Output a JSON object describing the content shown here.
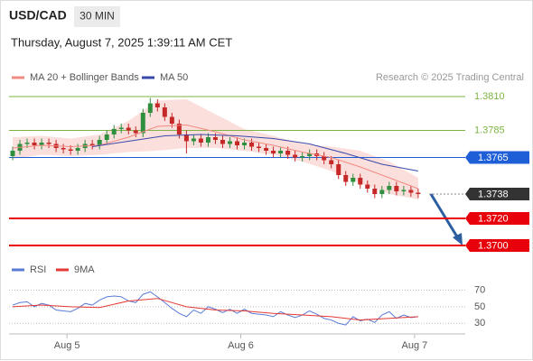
{
  "header": {
    "symbol": "USD/CAD",
    "timeframe": "30 MIN",
    "timestamp": "Thursday, August 7, 2025 1:39:11 AM CET"
  },
  "chart_data": [
    {
      "type": "candlestick",
      "source": "Research © 2025 Trading Central",
      "xlim": [
        -0.5,
        62.5
      ],
      "ylim": [
        1.3692,
        1.3818
      ],
      "up_color": "#2f8f3f",
      "down_color": "#c62828",
      "candles": {
        "open": [
          1.3766,
          1.377,
          1.3775,
          1.3776,
          1.3774,
          1.3776,
          1.3775,
          1.3772,
          1.3771,
          1.377,
          1.3772,
          1.3775,
          1.3774,
          1.3778,
          1.3782,
          1.3786,
          1.3787,
          1.3785,
          1.3783,
          1.3798,
          1.3805,
          1.3802,
          1.3795,
          1.379,
          1.3782,
          1.3777,
          1.3779,
          1.3776,
          1.378,
          1.3778,
          1.3775,
          1.3777,
          1.3774,
          1.3776,
          1.3773,
          1.3772,
          1.377,
          1.3768,
          1.377,
          1.3767,
          1.3765,
          1.3766,
          1.3768,
          1.3766,
          1.3763,
          1.376,
          1.3752,
          1.3747,
          1.375,
          1.3745,
          1.3742,
          1.3738,
          1.3741,
          1.3744,
          1.374,
          1.3741,
          1.3739
        ],
        "high": [
          1.3773,
          1.3778,
          1.3779,
          1.3779,
          1.3779,
          1.3779,
          1.3778,
          1.3775,
          1.3774,
          1.3775,
          1.3778,
          1.3778,
          1.3781,
          1.3785,
          1.3789,
          1.379,
          1.379,
          1.3788,
          1.3801,
          1.3809,
          1.3808,
          1.3805,
          1.3798,
          1.3793,
          1.3785,
          1.3782,
          1.3782,
          1.3783,
          1.3783,
          1.3781,
          1.378,
          1.378,
          1.3779,
          1.3779,
          1.3776,
          1.3775,
          1.3773,
          1.3773,
          1.3773,
          1.377,
          1.3769,
          1.3771,
          1.3771,
          1.3769,
          1.3766,
          1.3763,
          1.3755,
          1.3753,
          1.3753,
          1.3748,
          1.3745,
          1.3744,
          1.3747,
          1.3747,
          1.3744,
          1.3744,
          1.3742
        ],
        "low": [
          1.3763,
          1.3767,
          1.3772,
          1.3771,
          1.3771,
          1.3772,
          1.3769,
          1.3768,
          1.3767,
          1.3767,
          1.3769,
          1.3771,
          1.3771,
          1.3775,
          1.3779,
          1.3783,
          1.3782,
          1.378,
          1.378,
          1.3795,
          1.3799,
          1.3792,
          1.3787,
          1.3779,
          1.3768,
          1.3774,
          1.3773,
          1.3773,
          1.3775,
          1.3772,
          1.3772,
          1.3771,
          1.3771,
          1.377,
          1.3769,
          1.3767,
          1.3765,
          1.3765,
          1.3764,
          1.3762,
          1.3762,
          1.3763,
          1.3763,
          1.376,
          1.3757,
          1.3749,
          1.3744,
          1.3744,
          1.3742,
          1.3739,
          1.3735,
          1.3735,
          1.3738,
          1.3737,
          1.3737,
          1.3736,
          1.3735
        ],
        "close": [
          1.377,
          1.3775,
          1.3776,
          1.3774,
          1.3776,
          1.3775,
          1.3772,
          1.3771,
          1.377,
          1.3772,
          1.3775,
          1.3774,
          1.3778,
          1.3782,
          1.3786,
          1.3787,
          1.3785,
          1.3783,
          1.3798,
          1.3805,
          1.3802,
          1.3795,
          1.379,
          1.3782,
          1.3777,
          1.3779,
          1.3776,
          1.378,
          1.3778,
          1.3775,
          1.3777,
          1.3774,
          1.3776,
          1.3773,
          1.3772,
          1.377,
          1.3768,
          1.377,
          1.3767,
          1.3765,
          1.3766,
          1.3768,
          1.3766,
          1.3763,
          1.376,
          1.3752,
          1.3747,
          1.375,
          1.3745,
          1.3742,
          1.3738,
          1.3741,
          1.3744,
          1.374,
          1.3741,
          1.3739,
          1.3738
        ]
      },
      "series": [
        {
          "name": "MA 20 + Bollinger Bands",
          "color": "#f28b82",
          "x": [
            0,
            4,
            8,
            12,
            16,
            20,
            24,
            28,
            32,
            36,
            40,
            44,
            48,
            52,
            56
          ],
          "values": [
            1.3772,
            1.3774,
            1.3773,
            1.3774,
            1.378,
            1.3788,
            1.3789,
            1.3784,
            1.3778,
            1.3774,
            1.3769,
            1.3765,
            1.3758,
            1.375,
            1.3742
          ],
          "upper": [
            1.378,
            1.3781,
            1.3779,
            1.3782,
            1.3792,
            1.3807,
            1.3808,
            1.3797,
            1.3786,
            1.3781,
            1.3775,
            1.3773,
            1.377,
            1.3762,
            1.375
          ],
          "lower": [
            1.3764,
            1.3767,
            1.3766,
            1.3767,
            1.3769,
            1.377,
            1.3772,
            1.3772,
            1.377,
            1.3767,
            1.3762,
            1.3755,
            1.3746,
            1.3738,
            1.3734
          ]
        },
        {
          "name": "MA 50",
          "color": "#3949ab",
          "x": [
            11,
            16,
            21,
            26,
            31,
            36,
            41,
            46,
            51,
            56
          ],
          "values": [
            1.3773,
            1.3777,
            1.3781,
            1.3782,
            1.3781,
            1.3779,
            1.3775,
            1.3768,
            1.376,
            1.3755
          ]
        }
      ],
      "levels": [
        {
          "value": 1.381,
          "label": "1.3810",
          "color": "#7cb342",
          "boxed": false,
          "line_width": 1
        },
        {
          "value": 1.3785,
          "label": "1.3785",
          "color": "#7cb342",
          "boxed": false,
          "line_width": 1
        },
        {
          "value": 1.3765,
          "label": "1.3765",
          "color": "#1e5fd8",
          "boxed": true,
          "line_width": 1
        },
        {
          "value": 1.3738,
          "label": "1.3738",
          "color": "#333333",
          "boxed": true,
          "line_width": 1,
          "dotted": true
        },
        {
          "value": 1.372,
          "label": "1.3720",
          "color": "#e8000b",
          "boxed": true,
          "line_width": 2
        },
        {
          "value": 1.37,
          "label": "1.3700",
          "color": "#e8000b",
          "boxed": true,
          "line_width": 2
        }
      ]
    },
    {
      "type": "line",
      "xlim": [
        -0.5,
        62.5
      ],
      "ylim": [
        15,
        88
      ],
      "yticks": [
        70,
        50,
        30
      ],
      "xticks": [
        {
          "value": 7.5,
          "label": "Aug 5"
        },
        {
          "value": 31.5,
          "label": "Aug 6"
        },
        {
          "value": 55.5,
          "label": "Aug 7"
        }
      ],
      "series": [
        {
          "name": "RSI",
          "color": "#5b7bd5",
          "values": [
            52,
            55,
            56,
            50,
            54,
            52,
            46,
            45,
            44,
            48,
            54,
            52,
            58,
            62,
            63,
            62,
            57,
            55,
            65,
            68,
            62,
            55,
            48,
            42,
            38,
            46,
            42,
            50,
            47,
            43,
            47,
            42,
            47,
            42,
            41,
            40,
            38,
            44,
            40,
            37,
            40,
            45,
            41,
            36,
            34,
            30,
            28,
            38,
            33,
            35,
            31,
            40,
            44,
            36,
            40,
            37,
            38
          ]
        },
        {
          "name": "9MA",
          "color": "#e53935",
          "x": [
            0,
            4,
            8,
            12,
            16,
            20,
            24,
            28,
            32,
            36,
            40,
            44,
            48,
            52,
            56
          ],
          "values": [
            50,
            52,
            50,
            49,
            57,
            60,
            50,
            46,
            45,
            42,
            40,
            38,
            34,
            36,
            38
          ]
        }
      ]
    }
  ]
}
